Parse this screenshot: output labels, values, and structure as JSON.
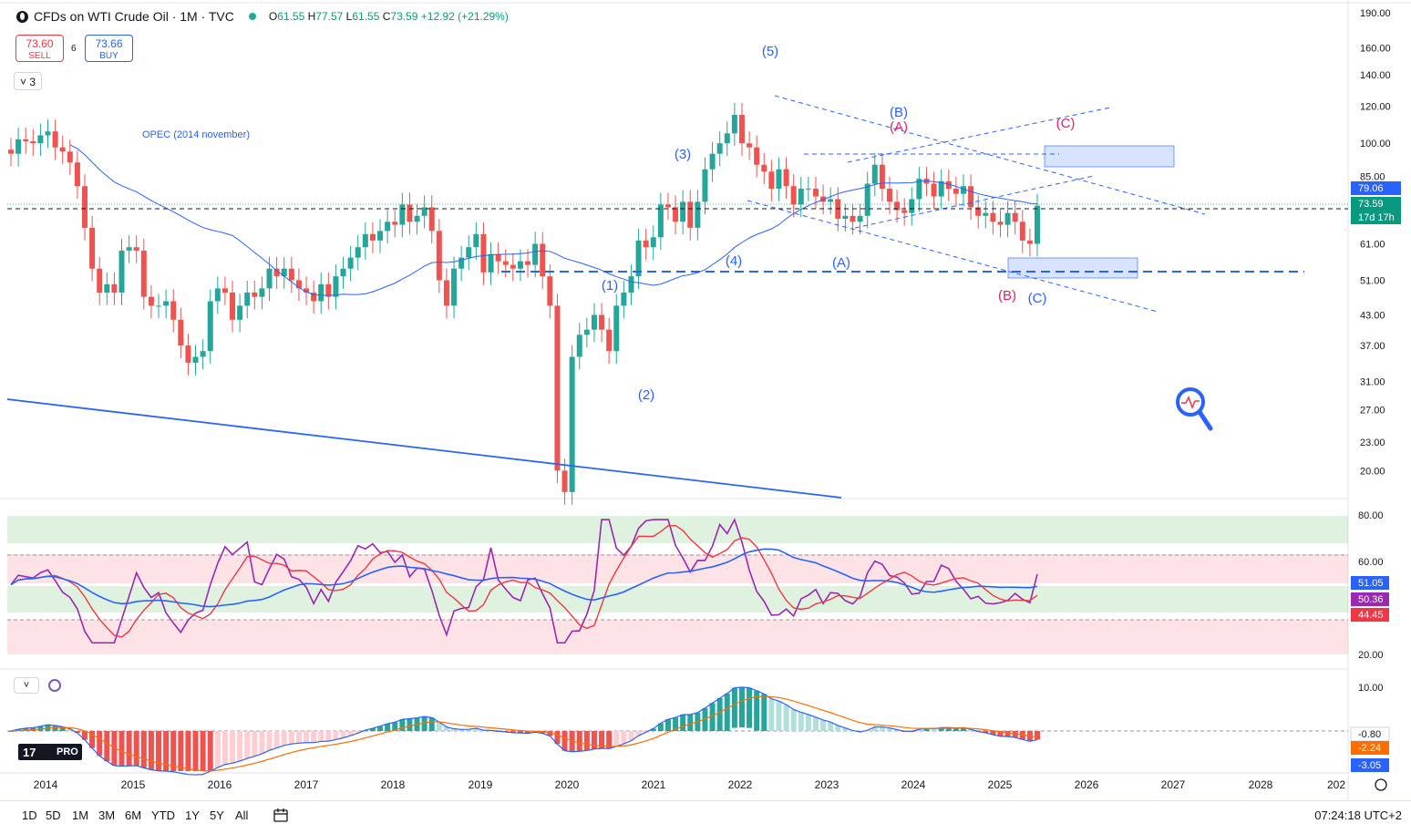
{
  "header": {
    "symbol": "CFDs on WTI Crude Oil · 1M · TVC",
    "ohlc": [
      {
        "k": "O",
        "v": "61.55"
      },
      {
        "k": "H",
        "v": "77.57"
      },
      {
        "k": "L",
        "v": "61.55"
      },
      {
        "k": "C",
        "v": "73.59"
      },
      {
        "k": "",
        "v": "+12.92 (+21.29%)"
      }
    ]
  },
  "trade": {
    "sell_price": "73.60",
    "sell_label": "SELL",
    "spread": "6",
    "buy_price": "73.66",
    "buy_label": "BUY"
  },
  "indicators_toggle": "3",
  "price_axis": {
    "ticks": [
      "190.00",
      "160.00",
      "140.00",
      "120.00",
      "100.00",
      "85.00",
      "61.00",
      "51.00",
      "43.00",
      "37.00",
      "31.00",
      "27.00",
      "23.00",
      "20.00"
    ],
    "badges": [
      {
        "text": "79.06",
        "color": "#2962ff"
      },
      {
        "text": "73.59",
        "color": "#089981"
      },
      {
        "text": "17d 17h",
        "color": "#089981"
      }
    ]
  },
  "rsi_axis": {
    "ticks": [
      "80.00",
      "60.00",
      "20.00"
    ],
    "badges": [
      {
        "text": "51.05",
        "color": "#2962ff"
      },
      {
        "text": "50.36",
        "color": "#9c27b0"
      },
      {
        "text": "44.45",
        "color": "#f23645"
      }
    ]
  },
  "macd_axis": {
    "ticks": [
      "10.00"
    ],
    "badges": [
      {
        "text": "-0.80",
        "color": "#ffffff"
      },
      {
        "text": "-2.24",
        "color": "#ff6d00"
      },
      {
        "text": "-3.05",
        "color": "#2962ff"
      }
    ]
  },
  "time_axis": [
    "2014",
    "2015",
    "2016",
    "2017",
    "2018",
    "2019",
    "2020",
    "2021",
    "2022",
    "2023",
    "2024",
    "2025",
    "2026",
    "2027",
    "2028",
    "202"
  ],
  "annotations": {
    "opec": "OPEC (2014 november)",
    "w1": "(1)",
    "w2": "(2)",
    "w3": "(3)",
    "w4": "(4)",
    "w5": "(5)",
    "A_blue": "(A)",
    "B_blue": "(B)",
    "C_blue": "(C)",
    "A_red": "(A)",
    "B_red": "(B)",
    "C_red": "(C)"
  },
  "ranges": [
    "1D",
    "5D",
    "1M",
    "3M",
    "6M",
    "YTD",
    "1Y",
    "5Y",
    "All"
  ],
  "clock": "07:24:18 UTC+2",
  "logo": "PRO",
  "colors": {
    "up": "#26a69a",
    "down": "#ef5350",
    "wave_blue": "#2962ff",
    "wave_red": "#e91e63",
    "ma": "#2962ff"
  },
  "chart_data": {
    "type": "candlestick",
    "interval": "1M",
    "x_range": [
      "2014-01",
      "2025-06"
    ],
    "y_scale": "log",
    "y_range": [
      17,
      190
    ],
    "close": [
      95,
      102,
      101,
      100,
      104,
      106,
      98,
      96,
      91,
      81,
      66,
      54,
      48,
      50,
      48,
      59,
      60,
      59,
      47,
      45,
      45,
      46,
      42,
      37,
      34,
      35,
      36,
      46,
      49,
      48,
      42,
      45,
      48,
      47,
      49,
      54,
      52,
      54,
      51,
      49,
      48,
      46,
      50,
      47,
      52,
      54,
      57,
      60,
      64,
      62,
      65,
      68,
      67,
      74,
      68,
      70,
      73,
      65,
      51,
      45,
      54,
      57,
      60,
      64,
      53,
      58,
      56,
      55,
      54,
      56,
      55,
      61,
      52,
      45,
      20,
      18,
      35,
      39,
      40,
      43,
      40,
      36,
      45,
      48,
      52,
      62,
      60,
      63,
      74,
      73,
      68,
      75,
      66,
      75,
      88,
      95,
      100,
      105,
      115,
      100,
      98,
      90,
      87,
      80,
      88,
      81,
      74,
      80,
      80,
      77,
      75,
      76,
      69,
      70,
      68,
      70,
      82,
      90,
      80,
      75,
      72,
      71,
      76,
      84,
      82,
      77,
      83,
      80,
      78,
      81,
      73,
      70,
      71,
      68,
      67,
      71,
      68,
      62,
      61,
      73.59
    ]
  }
}
